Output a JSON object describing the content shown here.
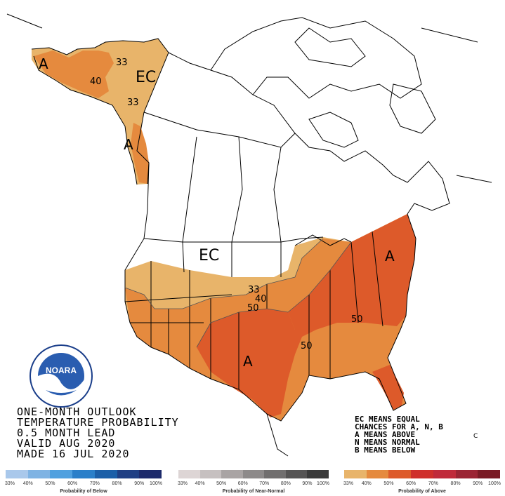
{
  "map_labels": {
    "ec_north": "EC",
    "ec_central": "EC",
    "a_alaska_west": "A",
    "a_alaska_pan": "A",
    "a_south": "A",
    "a_east": "A",
    "c_33_ak_top": "33",
    "c_40_ak": "40",
    "c_33_ak_bottom": "33",
    "c_33_conus": "33",
    "c_40_conus": "40",
    "c_50_conus": "50",
    "c_50_east": "50",
    "c_50_south": "50",
    "c_note": "C"
  },
  "title_lines": [
    "ONE-MONTH OUTLOOK",
    "TEMPERATURE PROBABILITY",
    "0.5 MONTH LEAD",
    "VALID AUG 2020",
    "MADE 16 JUL 2020"
  ],
  "notes_lines": [
    "EC MEANS EQUAL",
    "CHANCES FOR A, N, B",
    "A MEANS ABOVE",
    "N MEANS NORMAL",
    "B MEANS BELOW"
  ],
  "logo": {
    "text": "NOARA",
    "ring_text": "NATIONAL OCEANIC AND ATMOSPHERIC ADMINISTRATION · U.S. DEPARTMENT OF COMMERCE"
  },
  "colorbars": {
    "below": {
      "label": "Probability of Below",
      "ticks": [
        "33%",
        "40%",
        "50%",
        "60%",
        "70%",
        "80%",
        "90%",
        "100%"
      ],
      "colors": [
        "#a9c8eb",
        "#7fb3e3",
        "#4fa0df",
        "#2a7fc9",
        "#1b5fa8",
        "#1f3f84",
        "#1d2a6b"
      ]
    },
    "normal": {
      "label": "Probability of Near-Normal",
      "ticks": [
        "33%",
        "40%",
        "50%",
        "60%",
        "70%",
        "80%",
        "90%",
        "100%"
      ],
      "colors": [
        "#ddd5d5",
        "#c6c0c0",
        "#a9a4a4",
        "#8d8a8a",
        "#716f6f",
        "#555454",
        "#3a3a3a"
      ]
    },
    "above": {
      "label": "Probability of Above",
      "ticks": [
        "33%",
        "40%",
        "50%",
        "60%",
        "70%",
        "80%",
        "90%",
        "100%"
      ],
      "colors": [
        "#e8b46a",
        "#e58a3e",
        "#dd5a2a",
        "#cf2f2b",
        "#c02a3a",
        "#9b2433",
        "#7a1a24"
      ]
    }
  },
  "shading_colors": {
    "p33": "#e8b46a",
    "p40": "#e58a3e",
    "p50": "#dd5a2a",
    "p40_alaska": "#e58a3e"
  }
}
